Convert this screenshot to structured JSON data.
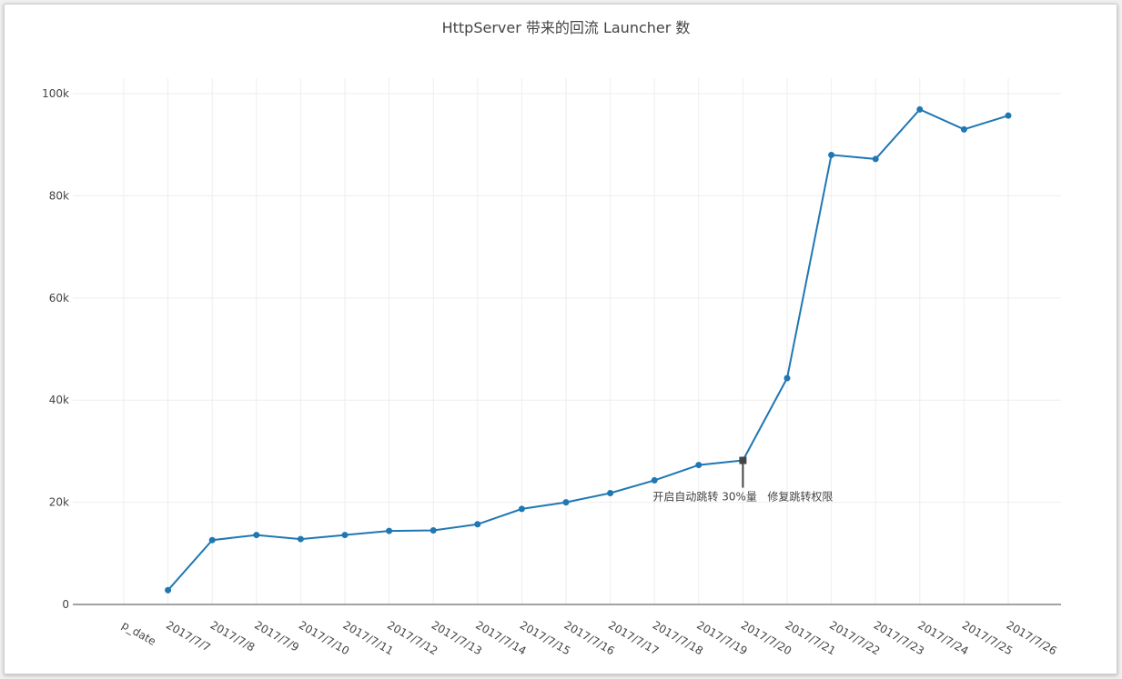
{
  "chart_data": {
    "type": "line",
    "title": "HttpServer 带来的回流 Launcher 数",
    "xlabel": "",
    "ylabel": "",
    "categories": [
      "p_date",
      "2017/7/7",
      "2017/7/8",
      "2017/7/9",
      "2017/7/10",
      "2017/7/11",
      "2017/7/12",
      "2017/7/13",
      "2017/7/14",
      "2017/7/15",
      "2017/7/16",
      "2017/7/17",
      "2017/7/18",
      "2017/7/19",
      "2017/7/20",
      "2017/7/21",
      "2017/7/22",
      "2017/7/23",
      "2017/7/24",
      "2017/7/25",
      "2017/7/26"
    ],
    "values": [
      null,
      2800,
      12600,
      13600,
      12800,
      13600,
      14400,
      14500,
      15700,
      18700,
      20000,
      21800,
      24300,
      27300,
      28200,
      44300,
      88000,
      87200,
      96900,
      93000,
      95700
    ],
    "ylim": [
      0,
      100000
    ],
    "yticks": [
      0,
      20000,
      40000,
      60000,
      80000,
      100000
    ],
    "ytick_labels": [
      "0",
      "20k",
      "40k",
      "60k",
      "80k",
      "100k"
    ],
    "grid": true,
    "line_color": "#1f77b4",
    "annotation": {
      "category": "2017/7/20",
      "value": 28200,
      "text": "开启自动跳转 30%量   修复跳转权限"
    }
  }
}
